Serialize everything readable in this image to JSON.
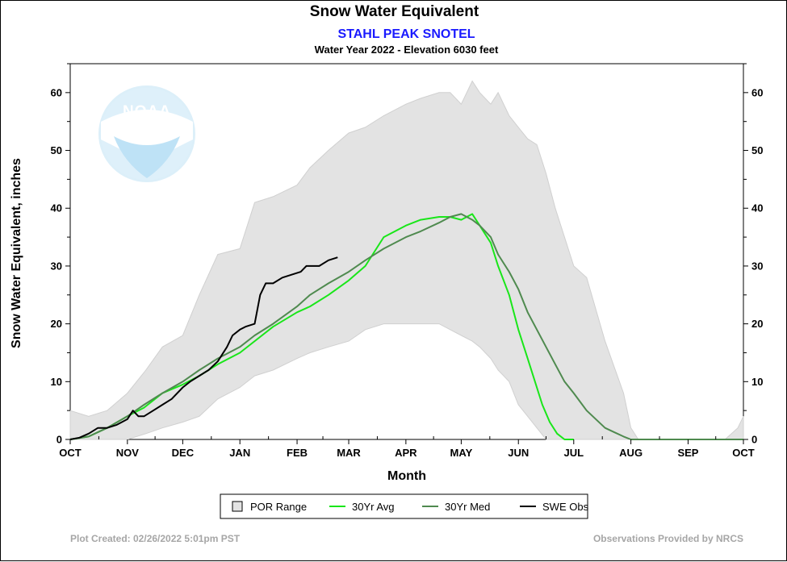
{
  "header": {
    "title": "Snow Water Equivalent",
    "station": "STAHL PEAK SNOTEL",
    "subtitle": "Water Year 2022 -  Elevation 6030 feet"
  },
  "footer": {
    "created": "Plot Created: 02/26/2022 5:01pm PST",
    "credit": "Observations Provided by NRCS"
  },
  "logo": {
    "text": "NOAA"
  },
  "colors": {
    "por_fill": "#e3e3e3",
    "avg": "#19e619",
    "median": "#4f8a4f",
    "obs": "#000000",
    "title_blue": "#1a1aff"
  },
  "chart_data": {
    "type": "line",
    "title": "Snow Water Equivalent",
    "subtitle": "Water Year 2022 -  Elevation 6030 feet",
    "xlabel": "Month",
    "ylabel": "Snow Water Equivalent, inches",
    "x_ticks": [
      "OCT",
      "NOV",
      "DEC",
      "JAN",
      "FEB",
      "MAR",
      "APR",
      "MAY",
      "JUN",
      "JUL",
      "AUG",
      "SEP",
      "OCT"
    ],
    "x_tick_days": [
      0,
      31,
      61,
      92,
      123,
      151,
      182,
      212,
      243,
      273,
      304,
      335,
      365
    ],
    "xlim": [
      0,
      365
    ],
    "ylim": [
      0,
      65
    ],
    "y_ticks": [
      0,
      10,
      20,
      30,
      40,
      50,
      60
    ],
    "grid": false,
    "legend": [
      "POR Range",
      "30Yr Avg",
      "30Yr Med",
      "SWE Obs"
    ],
    "series": [
      {
        "name": "POR Range",
        "kind": "band",
        "x": [
          0,
          10,
          20,
          31,
          41,
          50,
          61,
          70,
          80,
          92,
          100,
          110,
          123,
          130,
          140,
          151,
          160,
          170,
          182,
          190,
          200,
          206,
          212,
          218,
          222,
          228,
          232,
          238,
          243,
          248,
          253,
          258,
          263,
          268,
          273,
          280,
          290,
          300,
          304,
          308,
          312,
          320,
          335,
          345,
          355,
          362,
          365
        ],
        "upper": [
          5,
          4,
          5,
          8,
          12,
          16,
          18,
          25,
          32,
          33,
          41,
          42,
          44,
          47,
          50,
          53,
          54,
          56,
          58,
          59,
          60,
          60,
          58,
          62,
          60,
          58,
          60,
          56,
          54,
          52,
          51,
          46,
          40,
          35,
          30,
          28,
          17,
          8,
          2,
          0,
          0,
          0,
          0,
          0,
          0,
          2,
          4
        ],
        "lower": [
          0,
          0,
          0,
          0,
          1,
          2,
          3,
          4,
          7,
          9,
          11,
          12,
          14,
          15,
          16,
          17,
          19,
          20,
          20,
          20,
          20,
          19,
          18,
          17,
          16,
          14,
          12,
          10,
          6,
          4,
          2,
          0,
          0,
          0,
          0,
          0,
          0,
          0,
          0,
          0,
          0,
          0,
          0,
          0,
          0,
          0,
          0
        ]
      },
      {
        "name": "30Yr Avg",
        "x": [
          0,
          10,
          20,
          31,
          40,
          50,
          61,
          70,
          80,
          92,
          100,
          110,
          123,
          130,
          140,
          151,
          160,
          170,
          182,
          190,
          200,
          206,
          212,
          218,
          222,
          228,
          232,
          238,
          243,
          248,
          252,
          256,
          260,
          264,
          268,
          273
        ],
        "values": [
          0,
          0.5,
          2,
          4,
          5.5,
          8,
          9.5,
          11,
          13,
          15,
          17,
          19.5,
          22,
          23,
          25,
          27.5,
          30,
          35,
          37,
          38,
          38.5,
          38.5,
          38,
          39,
          37,
          34,
          30,
          25,
          19,
          14,
          10,
          6,
          3,
          1,
          0,
          0
        ]
      },
      {
        "name": "30Yr Med",
        "x": [
          0,
          10,
          20,
          31,
          40,
          50,
          61,
          70,
          80,
          92,
          100,
          110,
          123,
          130,
          140,
          151,
          160,
          170,
          182,
          190,
          200,
          206,
          212,
          218,
          222,
          228,
          232,
          238,
          243,
          248,
          253,
          258,
          263,
          268,
          273,
          280,
          290,
          300,
          304,
          310,
          320,
          335,
          365
        ],
        "values": [
          0,
          0.5,
          2,
          4,
          6,
          8,
          10,
          12,
          14,
          16,
          18,
          20,
          23,
          25,
          27,
          29,
          31,
          33,
          35,
          36,
          37.5,
          38.5,
          39,
          38,
          37,
          35,
          32,
          29,
          26,
          22,
          19,
          16,
          13,
          10,
          8,
          5,
          2,
          0.5,
          0,
          0,
          0,
          0,
          0
        ]
      },
      {
        "name": "SWE Obs",
        "x": [
          0,
          5,
          10,
          15,
          20,
          25,
          28,
          31,
          34,
          37,
          40,
          45,
          50,
          55,
          61,
          65,
          70,
          75,
          80,
          85,
          88,
          92,
          95,
          100,
          103,
          106,
          110,
          115,
          120,
          125,
          128,
          131,
          135,
          140,
          145
        ],
        "values": [
          0,
          0.3,
          1,
          2,
          2,
          2.5,
          3,
          3.5,
          5,
          4,
          4,
          5,
          6,
          7,
          9,
          10,
          11,
          12,
          13.5,
          16,
          18,
          19,
          19.5,
          20,
          25,
          27,
          27,
          28,
          28.5,
          29,
          30,
          30,
          30,
          31,
          31.5
        ]
      }
    ]
  }
}
